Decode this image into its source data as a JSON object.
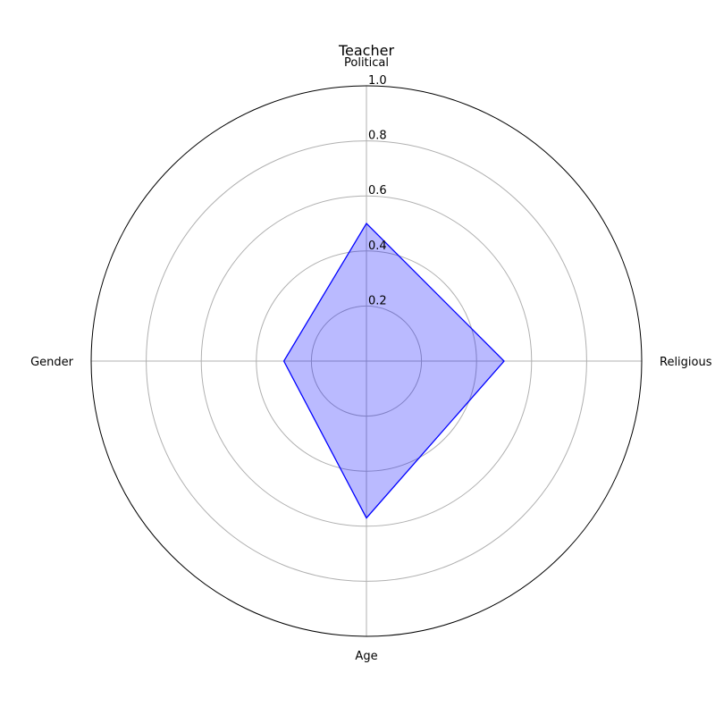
{
  "chart_data": {
    "type": "radar",
    "title": "Teacher",
    "categories": [
      "Political",
      "Religious",
      "Age",
      "Gender"
    ],
    "series": [
      {
        "name": "Teacher",
        "values": [
          0.5,
          0.5,
          0.57,
          0.3
        ],
        "line_color": "#0000ff",
        "fill_color": "#0000ff",
        "fill_opacity": 0.27
      }
    ],
    "rlim": [
      0,
      1.0
    ],
    "rticks": [
      0.2,
      0.4,
      0.6,
      0.8,
      1.0
    ],
    "rtick_labels": [
      "0.2",
      "0.4",
      "0.6",
      "0.8",
      "1.0"
    ],
    "grid": true,
    "legend": "none"
  }
}
